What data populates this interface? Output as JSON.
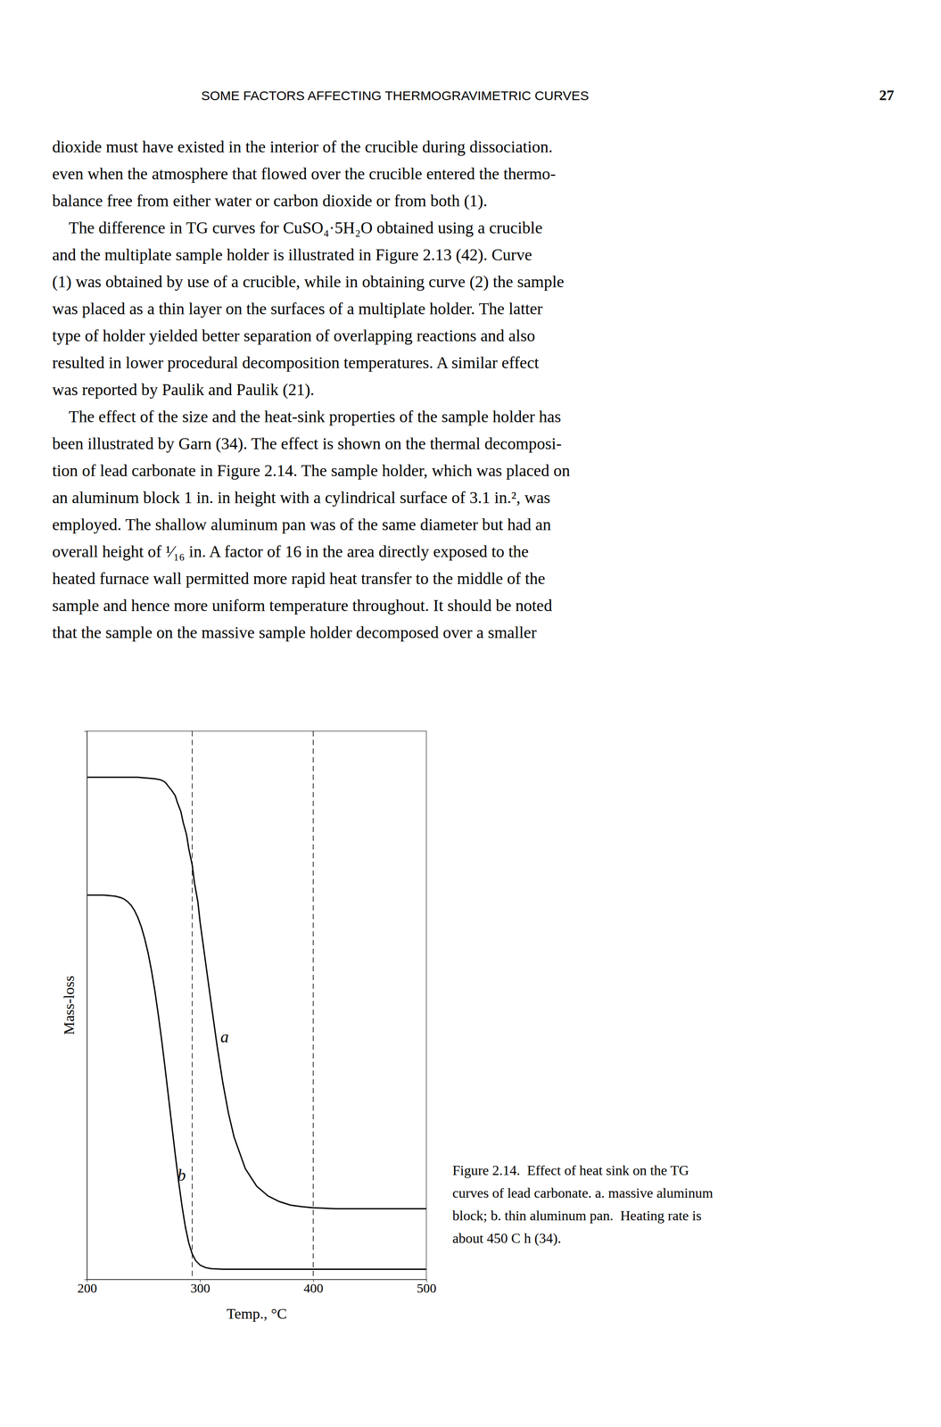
{
  "page_title": "SOME FACTORS AFFECTING THERMOGRAVIMETRIC CURVES",
  "page_number": "27",
  "body_text": [
    "dioxide must have existed in the interior of the crucible during dissociation.",
    "even when the atmosphere that flowed over the crucible entered the thermo-",
    "balance free from either water or carbon dioxide or from both (1).",
    " The difference in TG curves for CuSO₄·5H₂O obtained using a crucible",
    "and the multiplate sample holder is illustrated in Figure 2.13 (42). Curve",
    "(1) was obtained by use of a crucible, while in obtaining curve (2) the sample",
    "was placed as a thin layer on the surfaces of a multiplate holder. The latter",
    "type of holder yielded better separation of overlapping reactions and also",
    "resulted in lower procedural decomposition temperatures. A similar effect",
    "was reported by Paulik and Paulik (21).",
    " The effect of the size and the heat-sink properties of the sample holder has",
    "been illustrated by Garn (34). The effect is shown on the thermal decomposi-",
    "tion of lead carbonate in Figure 2.14. The sample holder, which was placed on",
    "an aluminum block 1 in. in height with a cylindrical surface of 3.1 in.², was",
    "employed. The shallow aluminum pan was of the same diameter but had an",
    "overall height of ¹⁄₁₆ in. A factor of 16 in the area directly exposed to the",
    "heated furnace wall permitted more rapid heat transfer to the middle of the",
    "sample and hence more uniform temperature throughout. It should be noted",
    "that the sample on the massive sample holder decomposed over a smaller"
  ],
  "caption": [
    "Figure 2.14.  Effect of heat sink on the TG",
    "curves of lead carbonate. a. massive aluminum",
    "block; b. thin aluminum pan.  Heating rate is",
    "about 450 C h (34)."
  ],
  "chart_data": {
    "type": "line",
    "xlabel": "Temp., °C",
    "ylabel": "Mass-loss",
    "xlim": [
      200,
      500
    ],
    "xticks": [
      200,
      300,
      400,
      500
    ],
    "ylim": [
      -0.02,
      1.05
    ],
    "yticks": [],
    "tick_labels": "x",
    "grid": false,
    "series": [
      {
        "color": "#000000",
        "x": [
          200,
          210,
          215,
          220,
          225,
          230,
          235,
          240,
          245,
          250,
          255,
          260,
          265,
          268,
          270,
          272,
          275,
          278,
          280,
          283,
          285,
          288,
          290,
          293,
          295,
          298,
          300,
          305,
          310,
          315,
          320,
          325,
          330,
          340,
          350,
          360,
          370,
          380,
          390,
          400,
          410,
          420,
          430,
          440,
          450,
          460,
          470,
          480,
          490,
          500
        ],
        "values": [
          0.96,
          0.96,
          0.96,
          0.96,
          0.96,
          0.96,
          0.96,
          0.96,
          0.96,
          0.959,
          0.958,
          0.957,
          0.955,
          0.952,
          0.948,
          0.942,
          0.934,
          0.924,
          0.91,
          0.893,
          0.872,
          0.848,
          0.82,
          0.789,
          0.754,
          0.717,
          0.677,
          0.596,
          0.515,
          0.436,
          0.365,
          0.305,
          0.258,
          0.196,
          0.162,
          0.143,
          0.132,
          0.125,
          0.122,
          0.12,
          0.119,
          0.118,
          0.118,
          0.118,
          0.118,
          0.118,
          0.118,
          0.118,
          0.118,
          0.118
        ]
      },
      {
        "color": "#000000",
        "x": [
          200,
          205,
          210,
          215,
          220,
          225,
          230,
          233,
          236,
          239,
          242,
          245,
          248,
          251,
          254,
          257,
          260,
          263,
          266,
          269,
          272,
          275,
          278,
          281,
          284,
          287,
          290,
          293,
          296,
          300,
          305,
          310,
          320,
          330,
          340,
          350,
          360,
          370,
          380,
          390,
          400,
          410,
          420,
          430,
          440,
          450,
          460,
          470,
          480,
          490,
          500
        ],
        "values": [
          0.73,
          0.73,
          0.73,
          0.73,
          0.729,
          0.728,
          0.725,
          0.722,
          0.717,
          0.71,
          0.7,
          0.686,
          0.668,
          0.645,
          0.617,
          0.583,
          0.543,
          0.497,
          0.447,
          0.393,
          0.337,
          0.28,
          0.224,
          0.171,
          0.123,
          0.082,
          0.051,
          0.03,
          0.017,
          0.008,
          0.003,
          0.001,
          0.0,
          0.0,
          0.0,
          0.0,
          0.0,
          0.0,
          0.0,
          0.0,
          0.0,
          0.0,
          0.0,
          0.0,
          0.0,
          0.0,
          0.0,
          0.0,
          0.0,
          0.0,
          0.0
        ]
      }
    ],
    "vlines": [
      293,
      400
    ],
    "annotations": [
      {
        "text": "a",
        "x": 318,
        "y": 0.45
      },
      {
        "text": "b",
        "x": 280,
        "y": 0.18
      }
    ]
  }
}
